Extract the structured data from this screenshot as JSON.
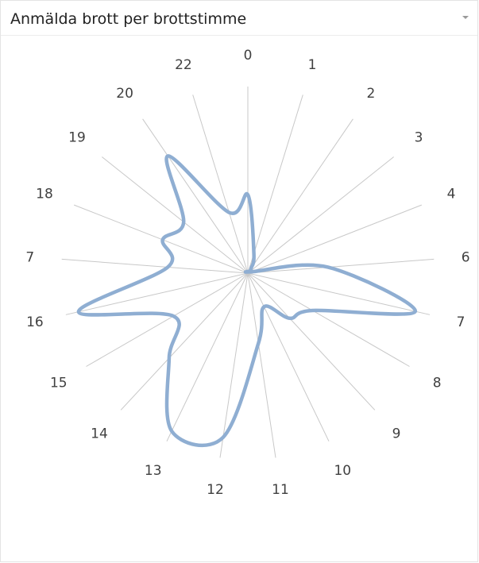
{
  "panel": {
    "title": "Anmälda brott per brottstimme"
  },
  "colors": {
    "series_line": "#8faed2",
    "axis_line": "#c8c8c8",
    "label_text": "#404040"
  },
  "icons": {
    "dropdown": "chevron-down-icon"
  },
  "chart_data": {
    "type": "radar",
    "title": "Anmälda brott per brottstimme",
    "categories": [
      "0",
      "1",
      "2",
      "3",
      "4",
      "6",
      "7",
      "8",
      "9",
      "10",
      "11",
      "12",
      "13",
      "14",
      "15",
      "16",
      "7",
      "18",
      "19",
      "20",
      "22"
    ],
    "series": [
      {
        "values": [
          0.42,
          0.11,
          0.03,
          0.02,
          0.02,
          0.43,
          0.92,
          0.4,
          0.33,
          0.2,
          0.38,
          0.89,
          0.94,
          0.62,
          0.46,
          0.93,
          0.43,
          0.49,
          0.44,
          0.76,
          0.34
        ]
      }
    ],
    "rmax": 1.0,
    "grid": false,
    "legend": "none",
    "xlabel": "",
    "ylabel": ""
  }
}
